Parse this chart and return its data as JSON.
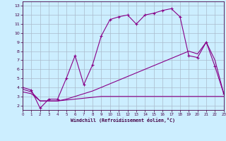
{
  "background_color": "#cceeff",
  "grid_color": "#aabbcc",
  "line_color": "#880088",
  "xlabel": "Windchill (Refroidissement éolien,°C)",
  "xlim": [
    0,
    23
  ],
  "ylim": [
    1.5,
    13.5
  ],
  "xticks": [
    0,
    1,
    2,
    3,
    4,
    5,
    6,
    7,
    8,
    9,
    10,
    11,
    12,
    13,
    14,
    15,
    16,
    17,
    18,
    19,
    20,
    21,
    22,
    23
  ],
  "yticks": [
    2,
    3,
    4,
    5,
    6,
    7,
    8,
    9,
    10,
    11,
    12,
    13
  ],
  "series1_x": [
    0,
    1,
    2,
    3,
    4,
    5,
    6,
    7,
    8,
    9,
    10,
    11,
    12,
    13,
    14,
    15,
    16,
    17,
    18,
    19,
    20,
    21,
    22,
    23
  ],
  "series1_y": [
    4.0,
    3.7,
    1.7,
    2.7,
    2.7,
    5.0,
    7.5,
    4.3,
    6.5,
    9.7,
    11.5,
    11.8,
    12.0,
    11.0,
    12.0,
    12.2,
    12.5,
    12.7,
    11.8,
    7.5,
    7.3,
    9.0,
    6.3,
    3.3
  ],
  "series2_x": [
    0,
    1,
    2,
    3,
    4,
    5,
    6,
    7,
    8,
    9,
    10,
    11,
    12,
    13,
    14,
    15,
    16,
    17,
    18,
    19,
    20,
    21,
    22,
    23
  ],
  "series2_y": [
    3.8,
    3.5,
    2.5,
    2.5,
    2.5,
    2.7,
    3.0,
    3.3,
    3.6,
    4.0,
    4.4,
    4.8,
    5.2,
    5.6,
    6.0,
    6.4,
    6.8,
    7.2,
    7.6,
    8.0,
    7.7,
    9.0,
    7.0,
    3.3
  ],
  "series3_x": [
    0,
    1,
    2,
    3,
    4,
    5,
    6,
    7,
    8,
    9,
    10,
    11,
    12,
    13,
    14,
    15,
    16,
    17,
    18,
    19,
    20,
    21,
    22,
    23
  ],
  "series3_y": [
    3.5,
    3.3,
    2.5,
    2.5,
    2.5,
    2.6,
    2.7,
    2.8,
    2.9,
    3.0,
    3.0,
    3.0,
    3.0,
    3.0,
    3.0,
    3.0,
    3.0,
    3.0,
    3.0,
    3.0,
    3.0,
    3.0,
    3.0,
    3.0
  ]
}
